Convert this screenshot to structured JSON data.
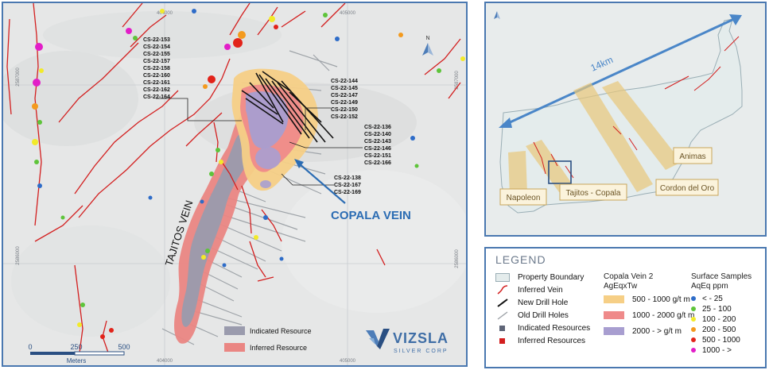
{
  "main_map": {
    "grid_labels_x": [
      "404000",
      "405000"
    ],
    "grid_labels_y": [
      "2587000",
      "2586000"
    ],
    "north_label": "N",
    "hole_groups": [
      [
        "CS-22-153",
        "CS-22-154",
        "CS-22-155",
        "CS-22-157",
        "CS-22-158",
        "CS-22-160",
        "CS-22-161",
        "CS-22-162",
        "CS-22-164"
      ],
      [
        "CS-22-144",
        "CS-22-145",
        "CS-22-147",
        "CS-22-149",
        "CS-22-150",
        "CS-22-152"
      ],
      [
        "CS-22-136",
        "CS-22-140",
        "CS-22-143",
        "CS-22-146",
        "CS-22-151",
        "CS-22-166"
      ],
      [
        "CS-22-138",
        "CS-22-167",
        "CS-22-169"
      ]
    ],
    "vein_labels": {
      "copala": "COPALA VEIN",
      "tajitos": "TAJITOS VEIN"
    },
    "resource_legend": {
      "indicated": "Indicated Resource",
      "inferred": "Inferred Resource"
    },
    "scale_bar": {
      "ticks": [
        "0",
        "250",
        "500"
      ],
      "unit": "Meters"
    },
    "logo": {
      "name": "VIZSLA",
      "sub": "SILVER CORP"
    }
  },
  "inset_map": {
    "distance_label": "14km",
    "areas": {
      "napoleon": "Napoleon",
      "tajitos_copala": "Tajitos - Copala",
      "cordon": "Cordon del Oro",
      "animas": "Animas"
    }
  },
  "legend": {
    "title": "LEGEND",
    "items": [
      {
        "label": "Property Boundary",
        "symbol": "property-boundary"
      },
      {
        "label": "Inferred Vein",
        "symbol": "inferred-vein"
      },
      {
        "label": "New Drill Hole",
        "symbol": "new-drill-hole"
      },
      {
        "label": "Old Drill Holes",
        "symbol": "old-drill-hole"
      },
      {
        "label": "Indicated Resources",
        "symbol": "indicated"
      },
      {
        "label": "Inferred Resources",
        "symbol": "inferred"
      }
    ],
    "copala_header": [
      "Copala Vein 2",
      "AgEqxTw"
    ],
    "copala_items": [
      {
        "label": "500 - 1000 g/t m",
        "color": "#f6cf86"
      },
      {
        "label": "1000 - 2000 g/t m",
        "color": "#ef8a8a"
      },
      {
        "label": "2000 - > g/t m",
        "color": "#a89ed0"
      }
    ],
    "samples_header": [
      "Surface Samples",
      "AqEq ppm"
    ],
    "sample_items": [
      {
        "label": "< - 25",
        "color": "#2e6cc8"
      },
      {
        "label": "25 - 100",
        "color": "#5ec43a"
      },
      {
        "label": "100 - 200",
        "color": "#f2ea2a"
      },
      {
        "label": "200 - 500",
        "color": "#f39a1e"
      },
      {
        "label": "500 - 1000",
        "color": "#e2231a"
      },
      {
        "label": "1000 - >",
        "color": "#e21ec8"
      }
    ]
  }
}
